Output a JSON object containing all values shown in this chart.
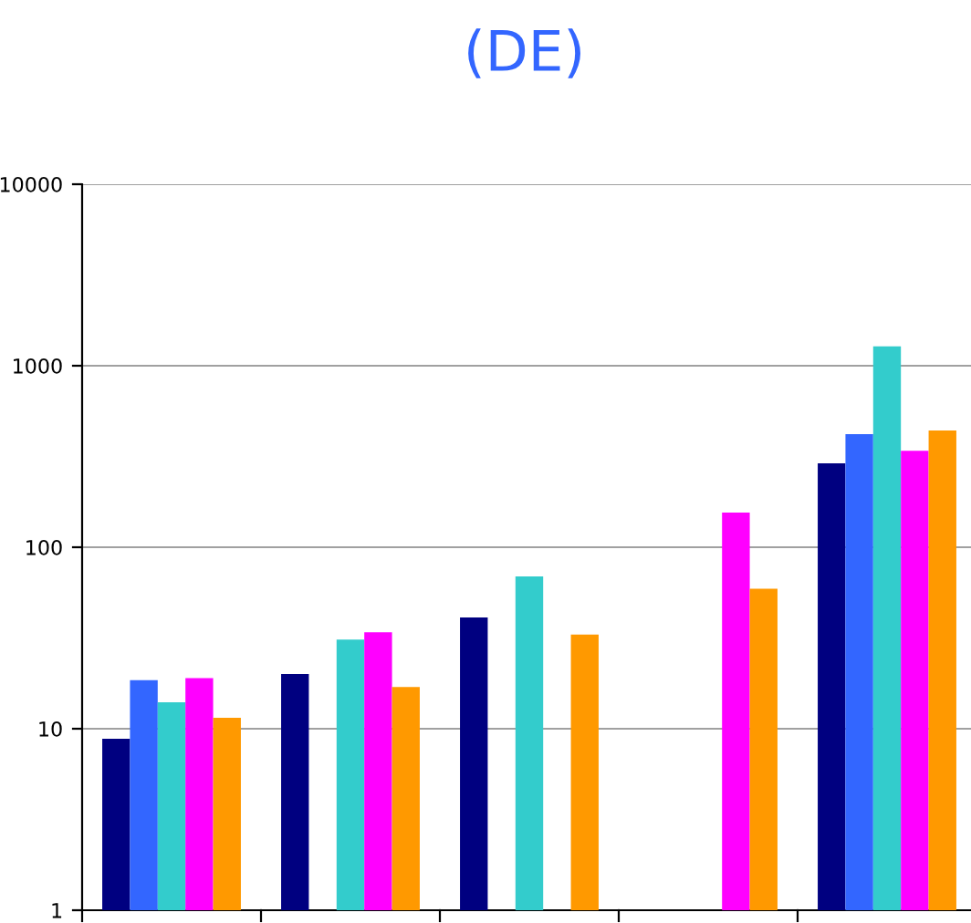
{
  "chart_data": {
    "type": "bar",
    "title": "(DE)",
    "categories": [
      null,
      null,
      null,
      null,
      null
    ],
    "series": [
      {
        "color": "#000080",
        "values": [
          8.8,
          20,
          41,
          null,
          290
        ]
      },
      {
        "color": "#3366ff",
        "values": [
          18.5,
          null,
          null,
          null,
          420
        ]
      },
      {
        "color": "#33cccc",
        "values": [
          14,
          31,
          69,
          null,
          1280
        ]
      },
      {
        "color": "#ff00ff",
        "values": [
          19,
          34,
          null,
          155,
          340
        ]
      },
      {
        "color": "#ff9900",
        "values": [
          11.5,
          17,
          33,
          59,
          440
        ]
      }
    ],
    "log": "y",
    "ylim": [
      1,
      10000
    ],
    "yticks": [
      1,
      10,
      100,
      1000,
      10000
    ],
    "grid": "y",
    "legend": false
  }
}
